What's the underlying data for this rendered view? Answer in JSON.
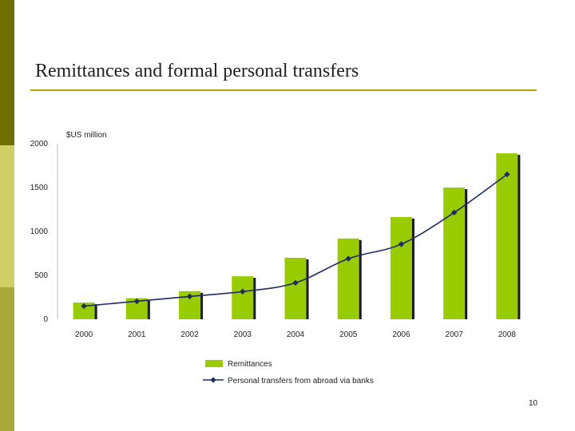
{
  "slide": {
    "title": "Remittances and formal personal transfers",
    "number": "10"
  },
  "colors": {
    "bar": "#99cc00",
    "bar_shadow": "#1a1a1a",
    "line": "#1f2a66",
    "title_rule": "#b7a400"
  },
  "chart_data": {
    "type": "bar",
    "ylabel": "$US million",
    "ylim": [
      0,
      2000
    ],
    "yticks": [
      0,
      500,
      1000,
      1500,
      2000
    ],
    "grid": false,
    "legend_position": "bottom",
    "categories": [
      "2000",
      "2001",
      "2002",
      "2003",
      "2004",
      "2005",
      "2006",
      "2007",
      "2008"
    ],
    "series": [
      {
        "name": "Remittances",
        "type": "bar",
        "values": [
          190,
          240,
          320,
          490,
          700,
          920,
          1165,
          1500,
          1890
        ]
      },
      {
        "name": "Personal transfers from abroad via banks",
        "type": "line",
        "values": [
          150,
          205,
          260,
          315,
          415,
          690,
          855,
          1215,
          1650
        ]
      }
    ]
  }
}
